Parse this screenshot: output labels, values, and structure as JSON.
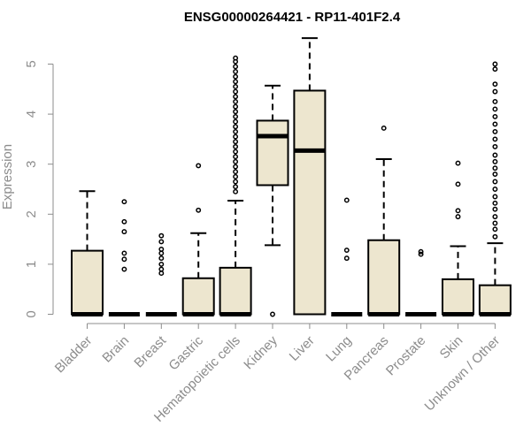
{
  "chart_data": {
    "type": "boxplot",
    "title": "ENSG00000264421 - RP11-401F2.4",
    "xlabel": "",
    "ylabel": "Expression",
    "ylim": [
      0,
      5.5
    ],
    "yticks": [
      0,
      1,
      2,
      3,
      4,
      5
    ],
    "colors": {
      "box_fill": "#ede6cf",
      "axis": "#8c8c8c"
    },
    "categories": [
      "Bladder",
      "Brain",
      "Breast",
      "Gastric",
      "Hematopoietic cells",
      "Kidney",
      "Liver",
      "Lung",
      "Pancreas",
      "Prostate",
      "Skin",
      "Unknown / Other"
    ],
    "boxes": [
      {
        "q1": 0,
        "median": 0,
        "q3": 1.27,
        "whisker_low": 0,
        "whisker_high": 2.46,
        "outliers": []
      },
      {
        "q1": 0,
        "median": 0,
        "q3": 0,
        "whisker_low": 0,
        "whisker_high": 0,
        "outliers": [
          0.9,
          1.1,
          1.22,
          1.65,
          1.85,
          2.25
        ]
      },
      {
        "q1": 0,
        "median": 0,
        "q3": 0,
        "whisker_low": 0,
        "whisker_high": 0,
        "outliers": [
          0.82,
          0.9,
          1.0,
          1.12,
          1.22,
          1.3,
          1.45,
          1.57
        ]
      },
      {
        "q1": 0,
        "median": 0,
        "q3": 0.72,
        "whisker_low": 0,
        "whisker_high": 1.62,
        "outliers": [
          2.08,
          2.97
        ]
      },
      {
        "q1": 0,
        "median": 0,
        "q3": 0.93,
        "whisker_low": 0,
        "whisker_high": 2.27,
        "outliers": [
          2.45,
          2.55,
          2.65,
          2.75,
          2.85,
          2.95,
          3.05,
          3.15,
          3.25,
          3.35,
          3.45,
          3.55,
          3.65,
          3.75,
          3.85,
          3.95,
          4.05,
          4.15,
          4.25,
          4.35,
          4.45,
          4.55,
          4.65,
          4.75,
          4.85,
          4.95,
          5.05,
          5.12
        ]
      },
      {
        "q1": 2.58,
        "median": 3.56,
        "q3": 3.87,
        "whisker_low": 1.38,
        "whisker_high": 4.57,
        "outliers": [
          0
        ]
      },
      {
        "q1": 0,
        "median": 3.27,
        "q3": 4.47,
        "whisker_low": 0,
        "whisker_high": 5.52,
        "outliers": []
      },
      {
        "q1": 0,
        "median": 0,
        "q3": 0,
        "whisker_low": 0,
        "whisker_high": 0,
        "outliers": [
          1.12,
          1.28,
          2.28
        ]
      },
      {
        "q1": 0,
        "median": 0,
        "q3": 1.48,
        "whisker_low": 0,
        "whisker_high": 3.1,
        "outliers": [
          3.72
        ]
      },
      {
        "q1": 0,
        "median": 0,
        "q3": 0,
        "whisker_low": 0,
        "whisker_high": 0,
        "outliers": [
          1.2,
          1.25
        ]
      },
      {
        "q1": 0,
        "median": 0,
        "q3": 0.7,
        "whisker_low": 0,
        "whisker_high": 1.36,
        "outliers": [
          1.95,
          2.07,
          2.6,
          3.02
        ]
      },
      {
        "q1": 0,
        "median": 0,
        "q3": 0.58,
        "whisker_low": 0,
        "whisker_high": 1.42,
        "outliers": [
          1.55,
          1.7,
          1.82,
          1.95,
          2.1,
          2.22,
          2.35,
          2.5,
          2.65,
          2.8,
          2.92,
          3.05,
          3.18,
          3.35,
          3.5,
          3.65,
          3.8,
          3.95,
          4.1,
          4.25,
          4.45,
          4.6,
          4.9,
          5.0
        ]
      }
    ]
  }
}
